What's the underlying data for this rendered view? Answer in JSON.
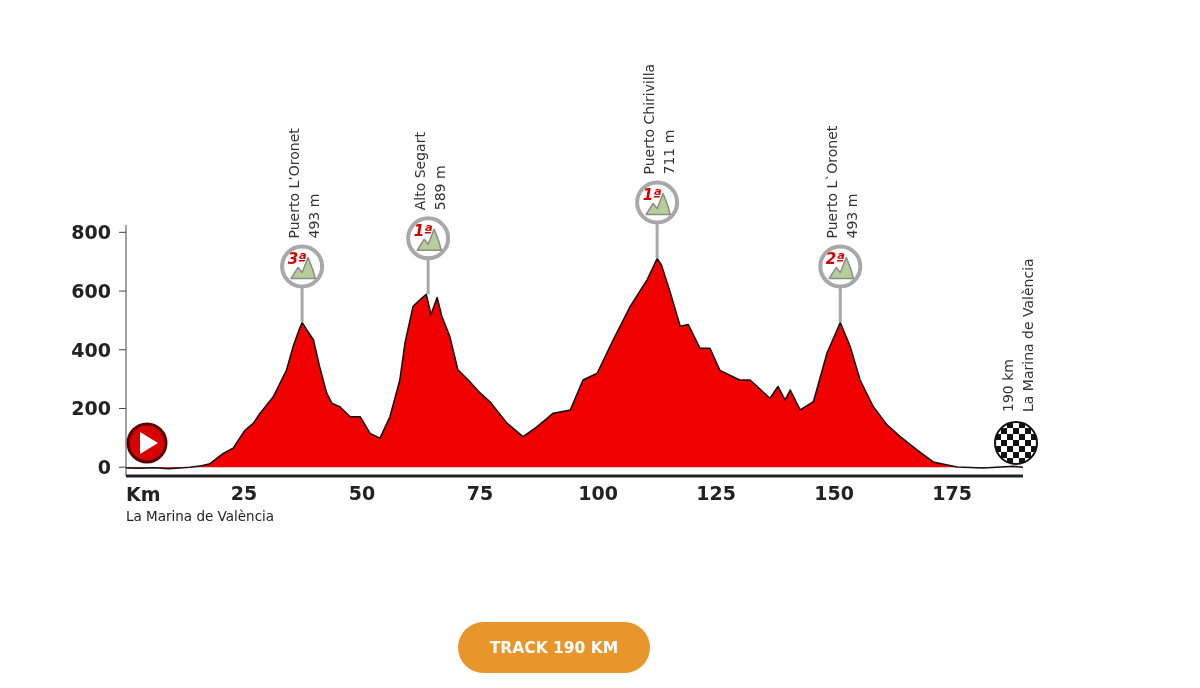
{
  "chart_data": {
    "type": "area",
    "xlabel": "Km",
    "x": [
      0,
      3,
      6,
      9,
      13.5,
      16,
      17.8,
      20.6,
      22.7,
      25.2,
      27,
      28.4,
      31.2,
      34,
      35.4,
      36.7,
      37.3,
      38.2,
      39.7,
      41,
      42.5,
      43.6,
      45.3,
      47.5,
      49.6,
      51.7,
      53.8,
      55.9,
      58,
      59.1,
      60.8,
      62.6,
      63.6,
      64.6,
      65.9,
      66.9,
      68.6,
      70.3,
      72.5,
      75,
      77.1,
      80.7,
      84.1,
      87.1,
      90.5,
      94.1,
      96.8,
      99.8,
      103.2,
      106.8,
      110.4,
      112.5,
      113.4,
      115.3,
      117.4,
      119.1,
      121.6,
      123.7,
      125.8,
      130,
      132.2,
      136.4,
      138.1,
      139.6,
      140.7,
      142.8,
      145.6,
      148.5,
      151.3,
      153.4,
      155.5,
      158.3,
      161.2,
      164,
      167.6,
      171,
      176,
      181.6,
      188,
      190
    ],
    "values": [
      -3,
      -4,
      -2,
      -5,
      0,
      5,
      12,
      47,
      65,
      126,
      150,
      184,
      240,
      331,
      411,
      470,
      493,
      470,
      434,
      343,
      253,
      218,
      206,
      172,
      172,
      115,
      99,
      172,
      297,
      424,
      548,
      575,
      589,
      520,
      578,
      514,
      445,
      332,
      297,
      253,
      223,
      150,
      104,
      138,
      184,
      195,
      297,
      320,
      434,
      548,
      639,
      711,
      690,
      594,
      480,
      486,
      405,
      405,
      330,
      297,
      297,
      235,
      275,
      229,
      263,
      195,
      223,
      390,
      493,
      411,
      297,
      206,
      144,
      104,
      58,
      18,
      1,
      -3,
      3,
      0
    ],
    "color": "#f00000",
    "xlim": [
      0,
      190
    ],
    "xticks": [
      25,
      50,
      75,
      100,
      125,
      150,
      175
    ],
    "ylim": [
      -30,
      825
    ],
    "yticks": [
      0,
      200,
      400,
      600,
      800
    ],
    "annotations": [
      {
        "text": "3ª\nPuerto L’Oronet\n493 m",
        "x": 37.3,
        "y": 493
      },
      {
        "text": "1ª\nAlto Segart\n589 m",
        "x": 64,
        "y": 589
      },
      {
        "text": "1ª\nPuerto Chirivilla\n711 m",
        "x": 112.5,
        "y": 711
      },
      {
        "text": "2ª\nPuerto L`Oronet\n493 m",
        "x": 151.3,
        "y": 493
      },
      "190 km\nLa Marina de València",
      "La Marina de València",
      "TRACK 190 KM"
    ]
  }
}
